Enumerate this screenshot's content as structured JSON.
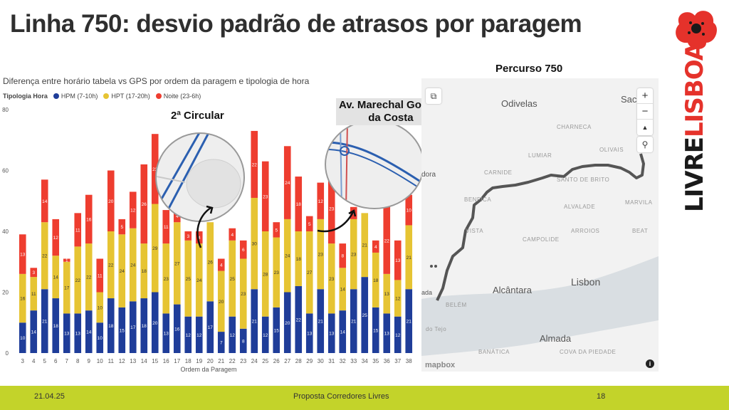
{
  "slide": {
    "title": "Linha 750: desvio padrão de atrasos por paragem"
  },
  "logo": {
    "word1": "LIVRE",
    "word2": "LISBOA"
  },
  "chart_data": {
    "type": "bar",
    "stacked": true,
    "title": "Diferença entre horário tabela vs GPS por ordem da paragem e tipologia de hora",
    "legend_title": "Tipologia Hora",
    "xlabel": "Ordem da Paragem",
    "ylabel": "",
    "ylim": [
      0,
      80
    ],
    "yticks": [
      0,
      20,
      40,
      60,
      80
    ],
    "grid": false,
    "legend_position": "top-left",
    "categories": [
      "3",
      "4",
      "5",
      "6",
      "7",
      "8",
      "9",
      "10",
      "11",
      "12",
      "13",
      "14",
      "15",
      "16",
      "17",
      "18",
      "19",
      "20",
      "21",
      "22",
      "23",
      "24",
      "25",
      "26",
      "27",
      "28",
      "29",
      "30",
      "31",
      "32",
      "33",
      "34",
      "35",
      "36",
      "37",
      "38"
    ],
    "series": [
      {
        "name": "HPM (7-10h)",
        "color": "#1f3d99",
        "values": [
          10,
          14,
          21,
          18,
          13,
          13,
          14,
          10,
          18,
          15,
          17,
          18,
          20,
          13,
          16,
          12,
          12,
          17,
          7,
          12,
          8,
          21,
          12,
          15,
          20,
          22,
          13,
          21,
          13,
          14,
          21,
          25,
          15,
          13,
          12,
          21
        ]
      },
      {
        "name": "HPT (17-20h)",
        "color": "#e6c433",
        "values": [
          16,
          11,
          22,
          14,
          17,
          22,
          22,
          10,
          22,
          24,
          24,
          18,
          29,
          23,
          27,
          25,
          24,
          26,
          20,
          25,
          23,
          30,
          28,
          23,
          24,
          18,
          27,
          23,
          23,
          14,
          23,
          21,
          18,
          13,
          12,
          21
        ]
      },
      {
        "name": "Noite (23-6h)",
        "color": "#ee3d2f",
        "values": [
          13,
          3,
          14,
          12,
          1,
          11,
          16,
          11,
          20,
          5,
          12,
          26,
          23,
          11,
          4,
          3,
          4,
          0,
          4,
          4,
          6,
          22,
          23,
          5,
          24,
          18,
          5,
          12,
          23,
          8,
          4,
          0,
          4,
          22,
          13,
          10
        ]
      }
    ]
  },
  "callouts": {
    "circular": "2ª Circular",
    "avenida_line1": "Av. Marechal Gomes",
    "avenida_line2": "da Costa"
  },
  "map": {
    "title": "Percurso 750",
    "labels": {
      "odivelas": "Odivelas",
      "sacavem": "Sacav",
      "charneca": "CHARNECA",
      "carnide": "CARNIDE",
      "benfica": "BENFICA",
      "lumiar": "LUMIAR",
      "olivais": "OLIVAIS",
      "santo_brito": "SANTO\nDE BRITO",
      "alvalade": "ALVALADE",
      "marvila": "MARVILA",
      "vista": "VISTA",
      "arroios": "ARROIOS",
      "campolide": "CAMPOLIDE",
      "beato": "BEAT",
      "alcantara": "Alcântara",
      "lisbon": "Lisbon",
      "belem": "BELÉM",
      "almada": "Almada",
      "cova": "COVA DA\nPIEDADE",
      "banatica": "BANÁTICA",
      "tejo": "do Tejo",
      "dora": "dora",
      "ada": "ada"
    },
    "controls": {
      "zoom_in": "+",
      "zoom_out": "−",
      "compass": "▲"
    },
    "attribution": "mapbox"
  },
  "footer": {
    "date": "21.04.25",
    "center": "Proposta Corredores Livres",
    "page": "18"
  }
}
